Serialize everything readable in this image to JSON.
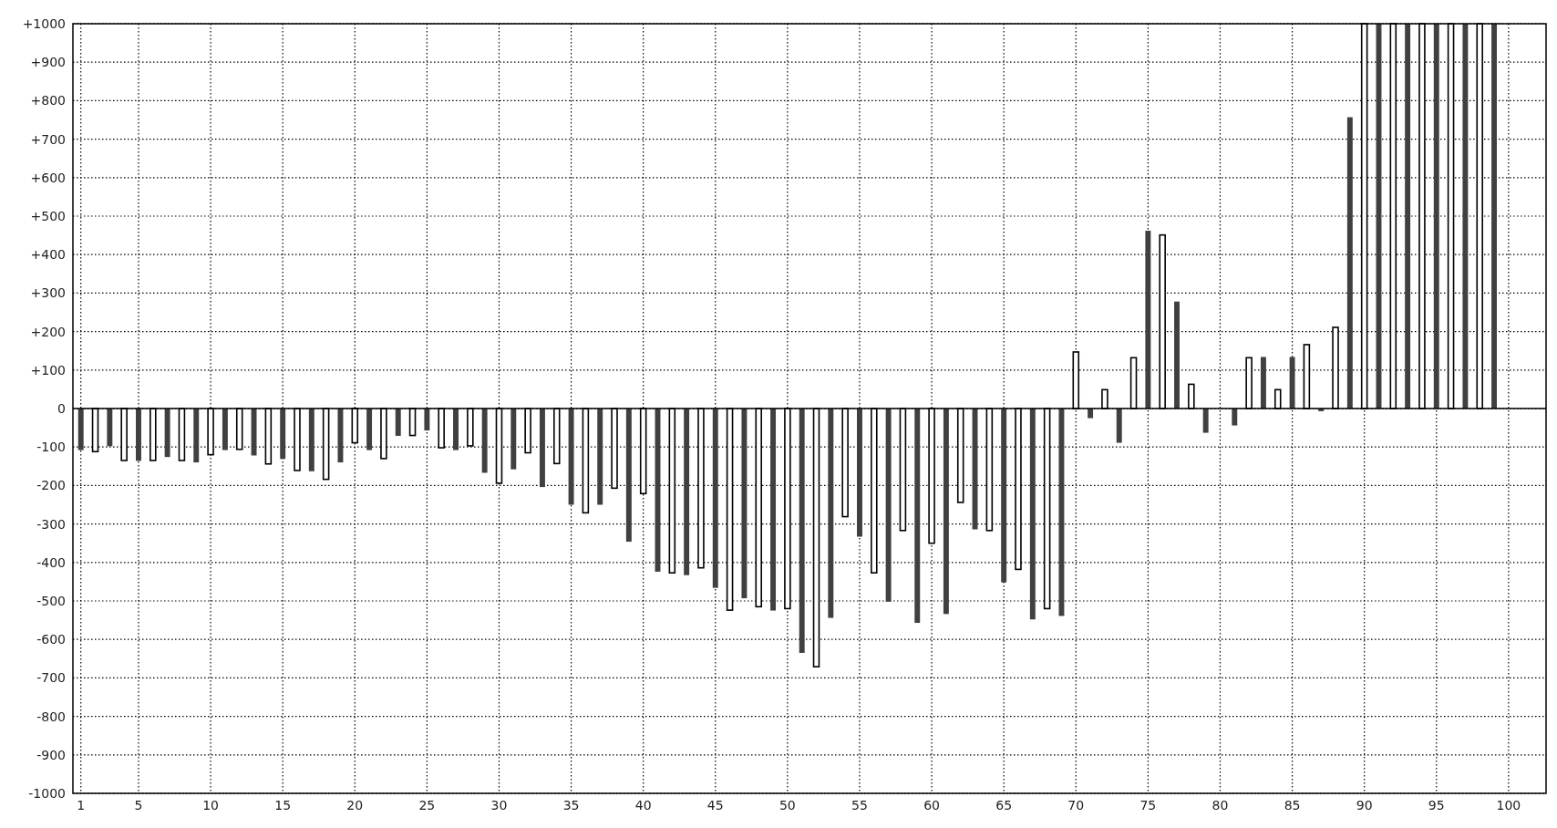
{
  "chart_data": {
    "type": "bar",
    "x": [
      1,
      2,
      3,
      4,
      5,
      6,
      7,
      8,
      9,
      10,
      11,
      12,
      13,
      14,
      15,
      16,
      17,
      18,
      19,
      20,
      21,
      22,
      23,
      24,
      25,
      26,
      27,
      28,
      29,
      30,
      31,
      32,
      33,
      34,
      35,
      36,
      37,
      38,
      39,
      40,
      41,
      42,
      43,
      44,
      45,
      46,
      47,
      48,
      49,
      50,
      51,
      52,
      53,
      54,
      55,
      56,
      57,
      58,
      59,
      60,
      61,
      62,
      63,
      64,
      65,
      66,
      67,
      68,
      69,
      70,
      71,
      72,
      73,
      74,
      75,
      76,
      77,
      78,
      79,
      80,
      81,
      82,
      83,
      84,
      85,
      86,
      87,
      88,
      89,
      90,
      91,
      92,
      93,
      94,
      95,
      96,
      97,
      98,
      99
    ],
    "values": [
      -108,
      -112,
      -98,
      -135,
      -136,
      -135,
      -126,
      -135,
      -140,
      -120,
      -108,
      -106,
      -122,
      -144,
      -131,
      -161,
      -163,
      -184,
      -140,
      -89,
      -108,
      -130,
      -71,
      -70,
      -57,
      -102,
      -108,
      -97,
      -167,
      -194,
      -158,
      -115,
      -204,
      -143,
      -250,
      -271,
      -250,
      -207,
      -346,
      -221,
      -424,
      -427,
      -433,
      -414,
      -466,
      -524,
      -493,
      -515,
      -525,
      -520,
      -635,
      -671,
      -544,
      -281,
      -333,
      -427,
      -502,
      -317,
      -557,
      -350,
      -534,
      -244,
      -314,
      -317,
      -452,
      -418,
      -548,
      -520,
      -539,
      147,
      -25,
      49,
      -89,
      132,
      462,
      451,
      278,
      63,
      -63,
      0,
      -44,
      132,
      134,
      49,
      134,
      166,
      -7,
      211,
      757,
      1000,
      1000,
      1000,
      1000,
      1000,
      1000,
      1000,
      1000,
      1000,
      1000
    ],
    "colors": [
      "#404040",
      "#ffffff",
      "#404040",
      "#ffffff",
      "#404040",
      "#ffffff",
      "#404040",
      "#ffffff",
      "#404040",
      "#ffffff",
      "#404040",
      "#ffffff",
      "#404040",
      "#ffffff",
      "#404040",
      "#ffffff",
      "#404040",
      "#ffffff",
      "#404040",
      "#ffffff",
      "#404040",
      "#ffffff",
      "#404040",
      "#ffffff",
      "#404040",
      "#ffffff",
      "#404040",
      "#ffffff",
      "#404040",
      "#ffffff",
      "#404040",
      "#ffffff",
      "#404040",
      "#ffffff",
      "#404040",
      "#ffffff",
      "#404040",
      "#ffffff",
      "#404040",
      "#ffffff",
      "#404040",
      "#ffffff",
      "#404040",
      "#ffffff",
      "#404040",
      "#ffffff",
      "#404040",
      "#ffffff",
      "#404040",
      "#ffffff",
      "#404040",
      "#ffffff",
      "#404040",
      "#ffffff",
      "#404040",
      "#ffffff",
      "#404040",
      "#ffffff",
      "#404040",
      "#ffffff",
      "#404040",
      "#ffffff",
      "#404040",
      "#ffffff",
      "#404040",
      "#ffffff",
      "#404040",
      "#ffffff",
      "#404040",
      "#ffffff",
      "#404040",
      "#ffffff",
      "#404040",
      "#ffffff",
      "#404040",
      "#ffffff",
      "#404040",
      "#ffffff",
      "#404040",
      "#ffffff",
      "#404040",
      "#ffffff",
      "#404040",
      "#ffffff",
      "#404040",
      "#ffffff",
      "#404040",
      "#ffffff",
      "#404040",
      "#ffffff",
      "#404040",
      "#ffffff",
      "#404040",
      "#ffffff",
      "#404040",
      "#ffffff",
      "#404040",
      "#ffffff",
      "#404040"
    ],
    "xlim": [
      0.45,
      102.6
    ],
    "xticks": [
      1,
      5,
      10,
      15,
      20,
      25,
      30,
      35,
      40,
      45,
      50,
      55,
      60,
      65,
      70,
      75,
      80,
      85,
      90,
      95,
      100
    ],
    "ylim": [
      -1000,
      1000
    ],
    "yticks": [
      {
        "value": 1000,
        "label": "+1000"
      },
      {
        "value": 900,
        "label": "+900"
      },
      {
        "value": 800,
        "label": "+800"
      },
      {
        "value": 700,
        "label": "+700"
      },
      {
        "value": 600,
        "label": "+600"
      },
      {
        "value": 500,
        "label": "+500"
      },
      {
        "value": 400,
        "label": "+400"
      },
      {
        "value": 300,
        "label": "+300"
      },
      {
        "value": 200,
        "label": "+200"
      },
      {
        "value": 100,
        "label": "+100"
      },
      0,
      -100,
      -200,
      -300,
      -400,
      -500,
      -600,
      -700,
      -800,
      -900,
      -1000
    ],
    "grid": true
  }
}
